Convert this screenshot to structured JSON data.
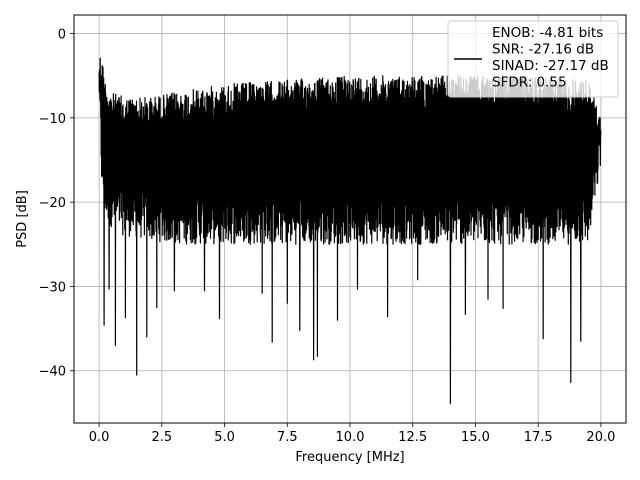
{
  "chart_data": {
    "type": "line",
    "title": "",
    "xlabel": "Frequency [MHz]",
    "ylabel": "PSD [dB]",
    "xlim": [
      -1.0,
      21.0
    ],
    "ylim": [
      -46.2,
      2.2
    ],
    "x_ticks": [
      0.0,
      2.5,
      5.0,
      7.5,
      10.0,
      12.5,
      15.0,
      17.5,
      20.0
    ],
    "x_tick_labels": [
      "0.0",
      "2.5",
      "5.0",
      "7.5",
      "10.0",
      "12.5",
      "15.0",
      "17.5",
      "20.0"
    ],
    "y_ticks": [
      0,
      -10,
      -20,
      -30,
      -40
    ],
    "y_tick_labels": [
      "0",
      "−10",
      "−20",
      "−30",
      "−40"
    ],
    "grid": true,
    "legend_position": "top-right",
    "legend": {
      "line_color": "#000000",
      "lines": [
        "ENOB: -4.81 bits",
        "SNR: -27.16 dB",
        "SINAD: -27.17 dB",
        "SFDR: 0.55"
      ]
    },
    "series": [
      {
        "color": "#000000",
        "x_range": [
          0.0,
          20.0
        ],
        "envelope": {
          "x": [
            0.0,
            0.1,
            0.25,
            0.5,
            1.0,
            2.0,
            3.0,
            5.0,
            7.5,
            10.0,
            12.5,
            15.0,
            17.5,
            19.5,
            20.0
          ],
          "upper": [
            -2.0,
            -2.5,
            -5.5,
            -7.0,
            -7.5,
            -7.5,
            -7.0,
            -6.0,
            -5.5,
            -5.0,
            -5.0,
            -5.0,
            -5.0,
            -5.5,
            -10.0
          ],
          "lower": [
            -8.0,
            -18.0,
            -22.0,
            -23.0,
            -24.0,
            -24.5,
            -25.0,
            -25.0,
            -25.0,
            -25.0,
            -25.0,
            -25.0,
            -25.0,
            -25.0,
            -16.0
          ]
        },
        "dips": [
          {
            "x": 0.2,
            "y": -34.6
          },
          {
            "x": 0.4,
            "y": -30.3
          },
          {
            "x": 0.65,
            "y": -37.0
          },
          {
            "x": 1.05,
            "y": -33.7
          },
          {
            "x": 1.5,
            "y": -40.5
          },
          {
            "x": 1.9,
            "y": -36.0
          },
          {
            "x": 2.3,
            "y": -32.5
          },
          {
            "x": 3.0,
            "y": -30.5
          },
          {
            "x": 4.2,
            "y": -30.5
          },
          {
            "x": 4.8,
            "y": -33.8
          },
          {
            "x": 6.5,
            "y": -30.8
          },
          {
            "x": 6.9,
            "y": -36.6
          },
          {
            "x": 7.5,
            "y": -32.0
          },
          {
            "x": 8.0,
            "y": -35.2
          },
          {
            "x": 8.55,
            "y": -38.7
          },
          {
            "x": 8.7,
            "y": -38.3
          },
          {
            "x": 9.5,
            "y": -34.0
          },
          {
            "x": 10.3,
            "y": -30.3
          },
          {
            "x": 11.5,
            "y": -33.6
          },
          {
            "x": 12.7,
            "y": -29.2
          },
          {
            "x": 14.0,
            "y": -43.9
          },
          {
            "x": 14.6,
            "y": -33.3
          },
          {
            "x": 15.5,
            "y": -31.5
          },
          {
            "x": 16.1,
            "y": -32.6
          },
          {
            "x": 17.7,
            "y": -36.2
          },
          {
            "x": 18.8,
            "y": -41.4
          },
          {
            "x": 19.2,
            "y": -36.5
          }
        ]
      }
    ]
  }
}
